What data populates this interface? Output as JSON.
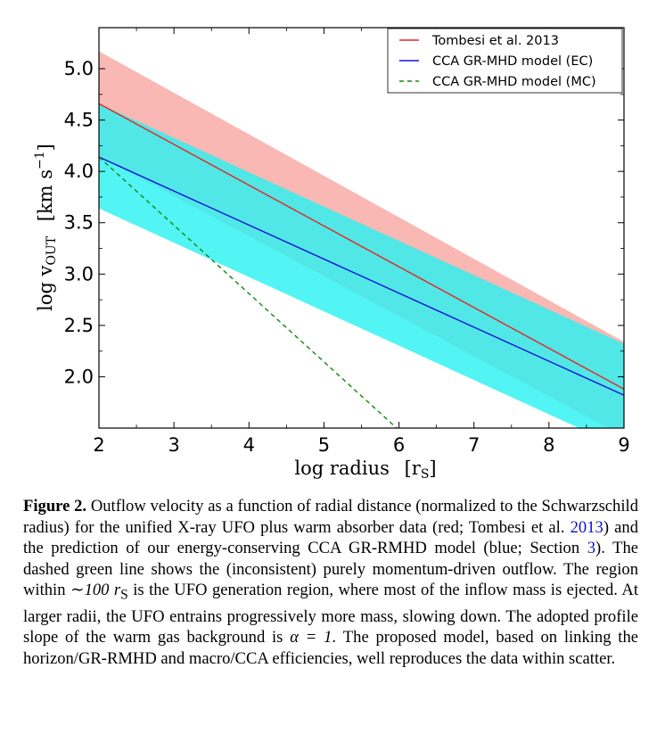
{
  "chart_data": {
    "type": "line",
    "xlabel": "log radius",
    "xlabel_unit": "[r",
    "xlabel_unit_sub": "S",
    "xlabel_unit_end": "]",
    "ylabel": "log v",
    "ylabel_sub": "OUT",
    "ylabel_unit": "[km s",
    "ylabel_unit_sup": "−1",
    "ylabel_unit_end": "]",
    "xlim": [
      2,
      9
    ],
    "ylim": [
      1.5,
      5.4
    ],
    "xticks": [
      2,
      3,
      4,
      5,
      6,
      7,
      8,
      9
    ],
    "yticks": [
      2.0,
      2.5,
      3.0,
      3.5,
      4.0,
      4.5,
      5.0
    ],
    "ytick_labels": [
      "2.0",
      "2.5",
      "3.0",
      "3.5",
      "4.0",
      "4.5",
      "5.0"
    ],
    "grid": false,
    "legend_position": "top-right",
    "series": [
      {
        "name": "Tombesi et al. 2013",
        "style": "solid",
        "color": "#e32626",
        "band_color": "#f8a8a2",
        "x": [
          2,
          9
        ],
        "y": [
          4.66,
          1.88
        ],
        "band_upper": [
          5.17,
          2.34
        ],
        "band_lower": [
          4.15,
          1.42
        ]
      },
      {
        "name": "CCA GR-MHD model (EC)",
        "style": "solid",
        "color": "#1414d8",
        "band_color": "#2cf2f2",
        "x": [
          2,
          9
        ],
        "y": [
          4.14,
          1.82
        ],
        "band_upper": [
          4.66,
          2.32
        ],
        "band_lower": [
          3.64,
          1.3
        ]
      },
      {
        "name": "CCA GR-MHD model (MC)",
        "style": "dashed",
        "color": "#0f8a0f",
        "x": [
          2,
          6
        ],
        "y": [
          4.14,
          1.48
        ]
      }
    ]
  },
  "caption": {
    "label": "Figure 2.",
    "text1": " Outflow velocity as a function of radial distance (normalized to the Schwarzschild radius) for the unified X-ray UFO plus warm absorber data (red; Tombesi et al. ",
    "ref1": "2013",
    "text2": ") and the prediction of our energy-conserving CCA GR-RMHD model (blue; Section ",
    "ref2": "3",
    "text3": "). The dashed green line shows the (inconsistent) purely momentum-driven outflow. The region within ",
    "math1": "∼100 r",
    "math1_sub": "S",
    "text4": " is the UFO generation region, where most of the inflow mass is ejected. At larger radii, the UFO entrains progressively more mass, slowing down. The adopted profile slope of the warm gas background is ",
    "math2": "α = 1",
    "text5": ". The proposed model, based on linking the horizon/GR-RMHD and macro/CCA efficiencies, well reproduces the data within scatter."
  }
}
